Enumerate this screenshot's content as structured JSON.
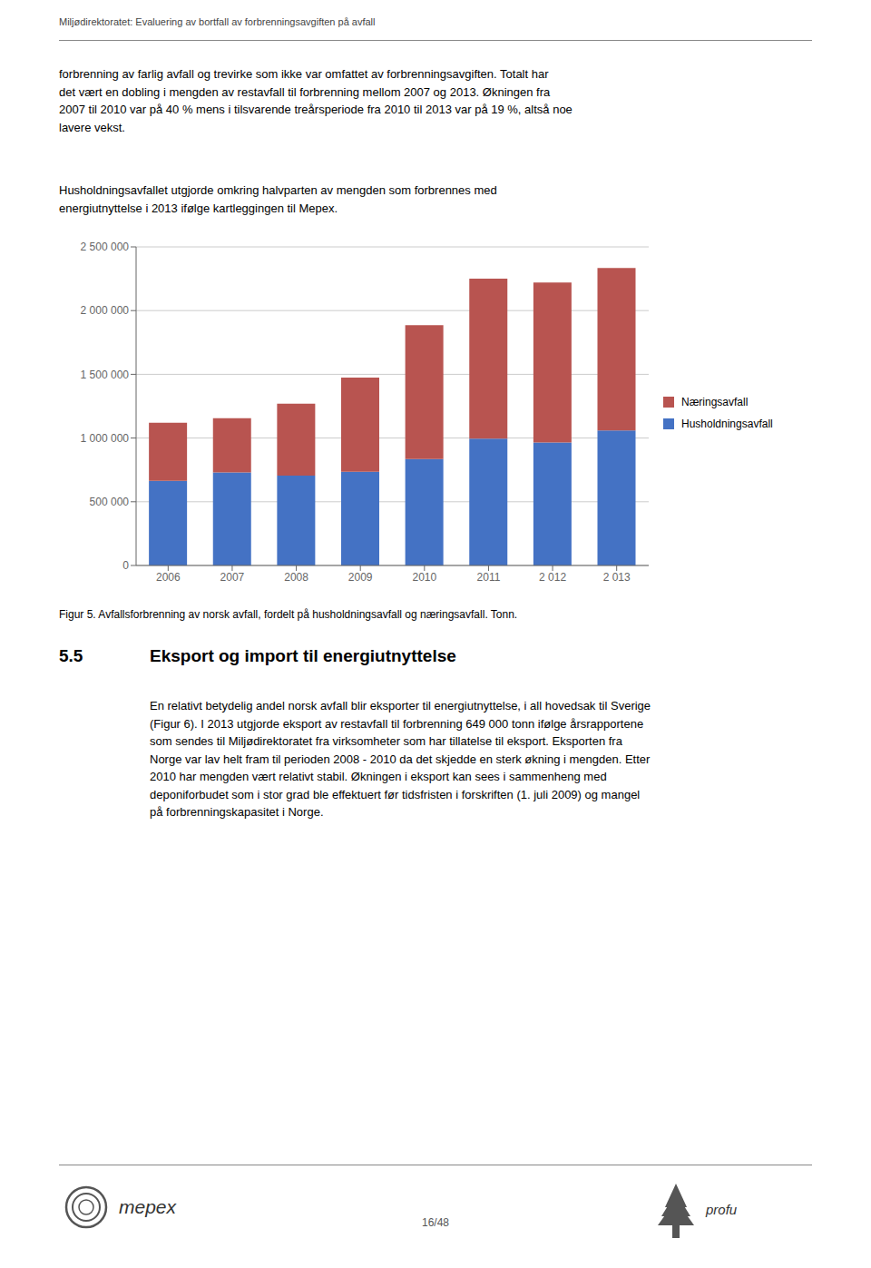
{
  "chart_data": {
    "type": "bar",
    "title": "Figur 5. Avfallsforbrenning av norsk avfall, fordelt på husholdningsavfall og næringsavfall. Tonn.",
    "subtitle": "Husholdningsavfallet utgjorde omkring halvparten av mengden som forbrennes med\nenergiutnyttelse i 2013 ifølge kartleggingen til Mepex.",
    "annotations": [
      "Miljødirektoratet: Evaluering av bortfall av forbrenningsavgiften på avfall",
      "forbrenning av farlig avfall og trevirke som ikke var omfattet av forbrenningsavgiften. Totalt har\ndet vært en dobling i mengden av restavfall til forbrenning mellom 2007 og 2013. Økningen fra\n2007 til 2010 var på 40 % mens i tilsvarende treårsperiode fra 2010 til 2013 var på 19 %, altså noe\nlavere vekst.",
      "5.5",
      "Eksport og import til energiutnyttelse",
      "En relativt betydelig andel norsk avfall blir eksporter til energiutnyttelse, i all hovedsak til Sverige\n(Figur 6). I 2013 utgjorde eksport av restavfall til forbrenning 649 000 tonn ifølge årsrapportene\nsom sendes til Miljødirektoratet fra virksomheter som har tillatelse til eksport. Eksporten fra\nNorge var lav helt fram til perioden 2008 - 2010 da det skjedde en sterk økning i mengden. Etter\n2010 har mengden vært relativt stabil. Økningen i eksport kan sees i sammenheng med\ndeponiforbudet som i stor grad ble effektuert før tidsfristen i forskriften (1. juli 2009) og mangel\npå forbrenningskapasitet i Norge.",
      "mepex",
      "profu",
      "16/48"
    ],
    "categories": [
      "2006",
      "2007",
      "2008",
      "2009",
      "2010",
      "2011",
      "2 012",
      "2 013"
    ],
    "series": [
      {
        "name": "Husholdningsavfall",
        "color": "#4472C4",
        "values": [
          665000,
          730000,
          705000,
          735000,
          835000,
          995000,
          965000,
          1060000
        ]
      },
      {
        "name": "Næringsavfall",
        "color": "#B85450",
        "values": [
          455000,
          425000,
          565000,
          740000,
          1050000,
          1255000,
          1255000,
          1275000
        ]
      }
    ],
    "stacked": true,
    "ylim": [
      0,
      2500000
    ],
    "yticks": [
      0,
      {
        "value": 500000,
        "label": "500 000"
      },
      {
        "value": 1000000,
        "label": "1 000 000"
      },
      {
        "value": 1500000,
        "label": "1 500 000"
      },
      {
        "value": 2000000,
        "label": "2 000 000"
      },
      {
        "value": 2500000,
        "label": "2 500 000"
      }
    ],
    "grid": true,
    "legend": "right"
  }
}
